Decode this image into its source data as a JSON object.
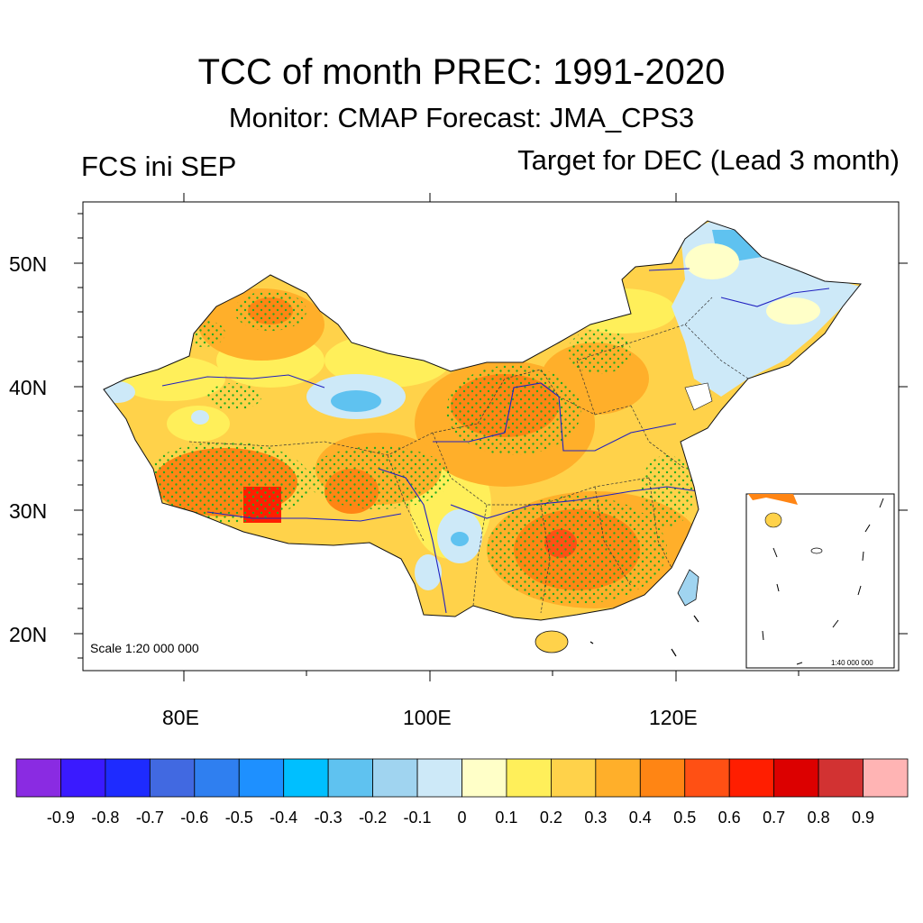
{
  "title": "TCC of month PREC: 1991-2020",
  "subtitle": "Monitor: CMAP   Forecast: JMA_CPS3",
  "left_string": "FCS ini SEP",
  "right_string": "Target for DEC (Lead 3 month)",
  "scale_text": "Scale 1:20 000 000",
  "inset_scale_text": "1:40 000 000",
  "lat_labels": [
    "50N",
    "40N",
    "30N",
    "20N"
  ],
  "lon_labels": [
    "80E",
    "100E",
    "120E"
  ],
  "colorbar": {
    "colors": [
      "#8a2be2",
      "#3a1aff",
      "#1e2bff",
      "#4169e1",
      "#2f7ff0",
      "#1e90ff",
      "#00bfff",
      "#5fc2f0",
      "#a0d4f0",
      "#cde9f8",
      "#ffffc8",
      "#ffef5a",
      "#ffd24a",
      "#ffaf2a",
      "#ff8514",
      "#ff5014",
      "#ff1e00",
      "#dc0000",
      "#d23232",
      "#ffb4b4"
    ],
    "labels": [
      "-0.9",
      "-0.8",
      "-0.7",
      "-0.6",
      "-0.5",
      "-0.4",
      "-0.3",
      "-0.2",
      "-0.1",
      "0",
      "0.1",
      "0.2",
      "0.3",
      "0.4",
      "0.5",
      "0.6",
      "0.7",
      "0.8",
      "0.9"
    ]
  },
  "map_colors": {
    "land_base": "#ffd24a",
    "warm_strong": "#ff8514",
    "warm_mid": "#ffaf2a",
    "light": "#ffef5a",
    "pale": "#ffffc8",
    "hot": "#ff1e00",
    "cool": "#cde9f8",
    "cool_mid": "#a0d4f0",
    "cool_strong": "#5fc2f0",
    "stipple": "#22aa22",
    "river": "#2020c0"
  }
}
